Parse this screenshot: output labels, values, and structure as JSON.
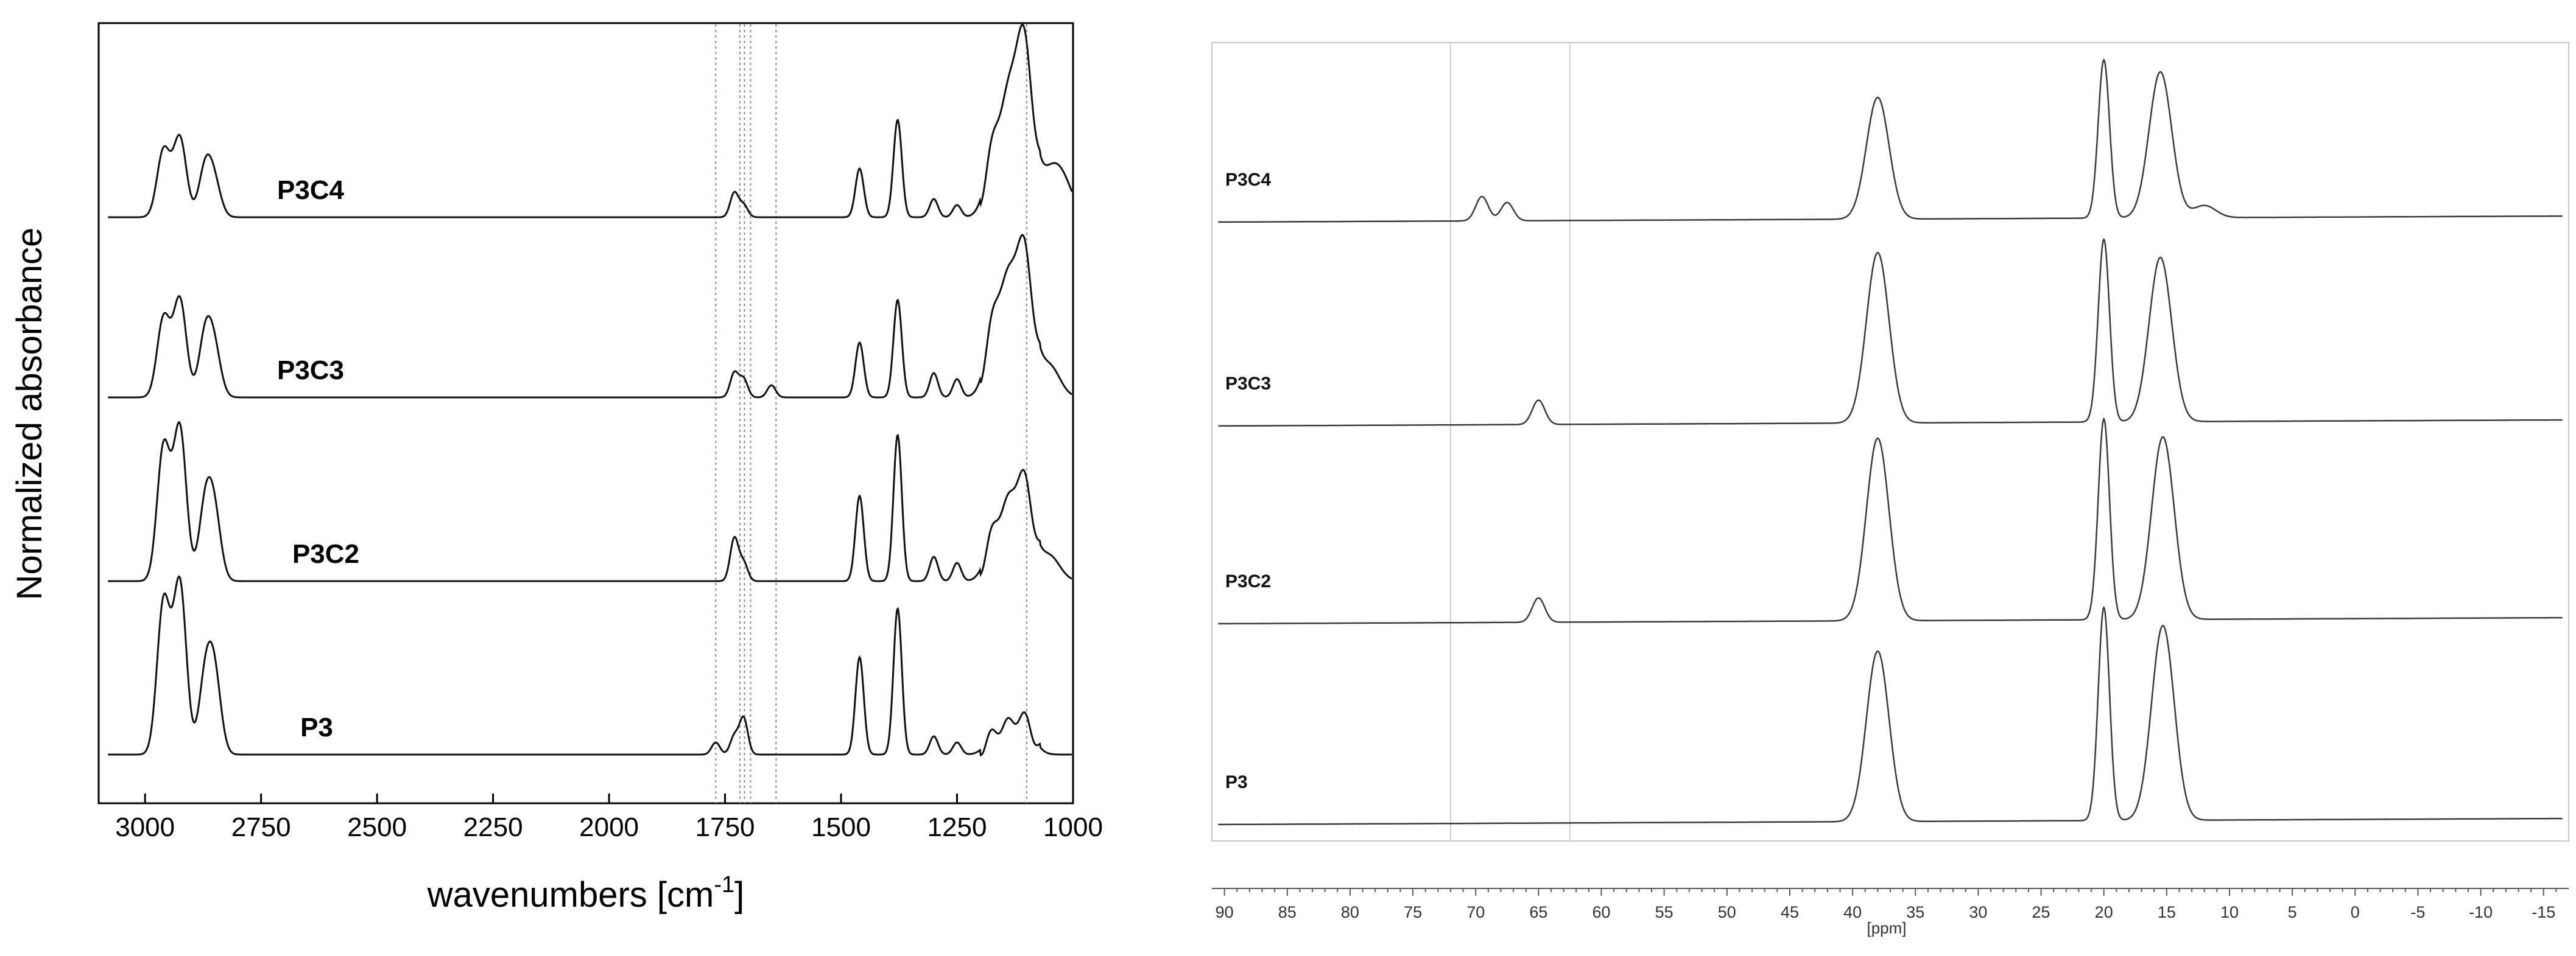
{
  "colors": {
    "background": "#ffffff",
    "ir_trace": "#111111",
    "ir_axis": "#000000",
    "ir_guide": "#8a8a8a",
    "nmr_trace": "#3a3a3a",
    "nmr_axis": "#5a5a5a",
    "nmr_frame": "#c8c8c8",
    "nmr_guide": "#cfcfcf"
  },
  "chart_data": [
    {
      "type": "line",
      "xlabel_main": "wavenumbers [cm",
      "xlabel_sup": "-1",
      "xlabel_close": "]",
      "ylabel": "Normalized absorbance",
      "xlim": [
        3100,
        1000
      ],
      "x_reversed": true,
      "x_ticks": [
        3000,
        2750,
        2500,
        2250,
        2000,
        1750,
        1500,
        1250,
        1000
      ],
      "x_tick_labels": [
        "3000",
        "2750",
        "2500",
        "2250",
        "2000",
        "1750",
        "1500",
        "1250",
        "1000"
      ],
      "y_ticks": false,
      "grid": false,
      "guide_lines_x": [
        1770,
        1718,
        1708,
        1695,
        1640,
        1100
      ],
      "series": [
        {
          "name": "P3C4",
          "baseline": 0.06,
          "peaks": [
            [
              2960,
              0.11
            ],
            [
              2925,
              0.13
            ],
            [
              2870,
              0.08
            ],
            [
              2850,
              0.05
            ],
            [
              1730,
              0.04
            ],
            [
              1710,
              0.02
            ],
            [
              1460,
              0.08
            ],
            [
              1378,
              0.16
            ],
            [
              1300,
              0.03
            ],
            [
              1250,
              0.02
            ],
            [
              1160,
              0.15
            ],
            [
              1110,
              0.3
            ],
            [
              1050,
              0.06
            ],
            [
              1020,
              0.05
            ]
          ]
        },
        {
          "name": "P3C3",
          "baseline": 0.05,
          "peaks": [
            [
              2960,
              0.13
            ],
            [
              2925,
              0.16
            ],
            [
              2870,
              0.1
            ],
            [
              2850,
              0.07
            ],
            [
              1730,
              0.04
            ],
            [
              1710,
              0.03
            ],
            [
              1650,
              0.02
            ],
            [
              1460,
              0.09
            ],
            [
              1378,
              0.16
            ],
            [
              1300,
              0.04
            ],
            [
              1250,
              0.03
            ],
            [
              1160,
              0.16
            ],
            [
              1110,
              0.25
            ],
            [
              1050,
              0.05
            ]
          ]
        },
        {
          "name": "P3C2",
          "baseline": 0.04,
          "peaks": [
            [
              2960,
              0.22
            ],
            [
              2925,
              0.25
            ],
            [
              2870,
              0.12
            ],
            [
              2850,
              0.1
            ],
            [
              1730,
              0.07
            ],
            [
              1710,
              0.03
            ],
            [
              1460,
              0.14
            ],
            [
              1378,
              0.24
            ],
            [
              1300,
              0.04
            ],
            [
              1250,
              0.03
            ],
            [
              1160,
              0.1
            ],
            [
              1110,
              0.17
            ],
            [
              1050,
              0.04
            ]
          ]
        },
        {
          "name": "P3",
          "baseline": 0.03,
          "peaks": [
            [
              2960,
              0.25
            ],
            [
              2925,
              0.28
            ],
            [
              2870,
              0.12
            ],
            [
              2850,
              0.12
            ],
            [
              1770,
              0.02
            ],
            [
              1730,
              0.03
            ],
            [
              1710,
              0.06
            ],
            [
              1460,
              0.16
            ],
            [
              1378,
              0.24
            ],
            [
              1300,
              0.03
            ],
            [
              1250,
              0.02
            ],
            [
              1160,
              0.04
            ],
            [
              1110,
              0.06
            ]
          ]
        }
      ]
    },
    {
      "type": "line",
      "xlabel": "[ppm]",
      "xlim": [
        91,
        -17
      ],
      "x_reversed": true,
      "x_ticks": [
        90,
        85,
        80,
        75,
        70,
        65,
        60,
        55,
        50,
        45,
        40,
        35,
        30,
        25,
        20,
        15,
        10,
        5,
        0,
        -5,
        -10,
        -15
      ],
      "x_tick_labels": [
        "90",
        "85",
        "80",
        "75",
        "70",
        "65",
        "60",
        "55",
        "50",
        "45",
        "40",
        "35",
        "30",
        "25",
        "20",
        "15",
        "10",
        "5",
        "0",
        "-5",
        "-10",
        "-15"
      ],
      "grid": false,
      "guide_lines_x": [
        72,
        62.5
      ],
      "series": [
        {
          "name": "P3C4",
          "peaks": [
            [
              69.5,
              0.04
            ],
            [
              67.5,
              0.03
            ],
            [
              38,
              0.2
            ],
            [
              20,
              0.26
            ],
            [
              15.5,
              0.24
            ],
            [
              12,
              0.02
            ]
          ]
        },
        {
          "name": "P3C3",
          "peaks": [
            [
              65,
              0.04
            ],
            [
              38,
              0.28
            ],
            [
              20,
              0.3
            ],
            [
              15.5,
              0.27
            ]
          ]
        },
        {
          "name": "P3C2",
          "peaks": [
            [
              65,
              0.04
            ],
            [
              38,
              0.3
            ],
            [
              20,
              0.33
            ],
            [
              15.3,
              0.3
            ]
          ]
        },
        {
          "name": "P3",
          "peaks": [
            [
              38,
              0.28
            ],
            [
              20,
              0.35
            ],
            [
              15.3,
              0.32
            ]
          ]
        }
      ]
    }
  ]
}
